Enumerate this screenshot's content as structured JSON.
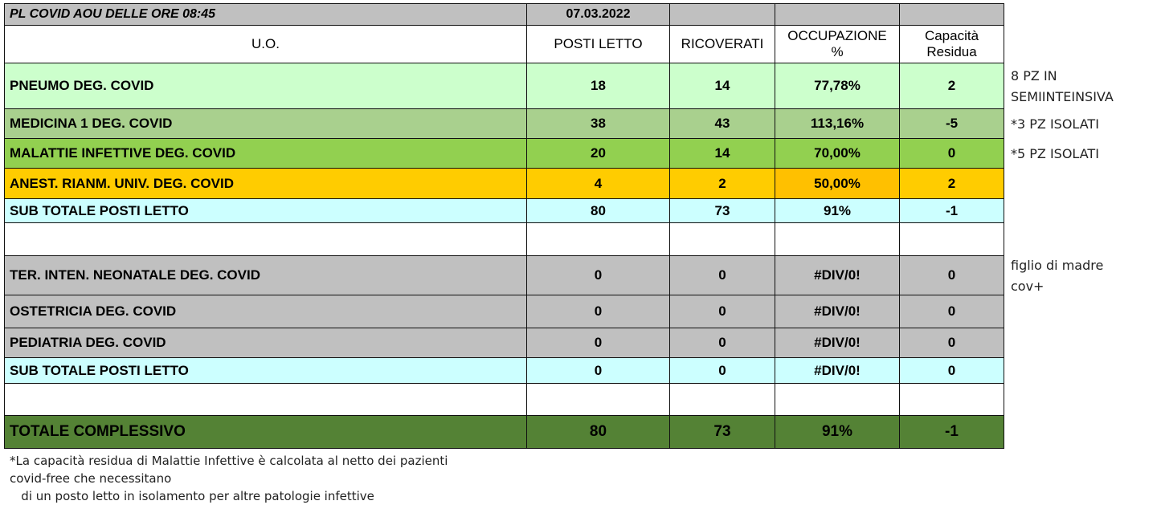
{
  "header": {
    "title": "PL COVID AOU DELLE ORE 08:45",
    "date": "07.03.2022"
  },
  "columns": [
    "U.O.",
    "POSTI LETTO",
    "RICOVERATI",
    "OCCUPAZIONE %",
    "Capacità Residua"
  ],
  "rows": [
    {
      "name": "PNEUMO  DEG. COVID",
      "posti": "18",
      "ricoverati": "14",
      "occupazione": "77,78%",
      "capacita": "2",
      "bg": "#ccffcc",
      "occ_bg": "#ccffcc",
      "note": "8 PZ IN SEMIINTEINSIVA"
    },
    {
      "name": "MEDICINA 1 DEG. COVID",
      "posti": "38",
      "ricoverati": "43",
      "occupazione": "113,16%",
      "capacita": "-5",
      "bg": "#a9d08e",
      "occ_bg": "#a9d08e",
      "note": "*3 PZ  ISOLATI"
    },
    {
      "name": "MALATTIE INFETTIVE  DEG. COVID",
      "posti": "20",
      "ricoverati": "14",
      "occupazione": "70,00%",
      "capacita": "0",
      "bg": "#92d050",
      "occ_bg": "#92d050",
      "note": "*5  PZ  ISOLATI"
    },
    {
      "name": "ANEST. RIANM. UNIV. DEG. COVID",
      "posti": "4",
      "ricoverati": "2",
      "occupazione": "50,00%",
      "capacita": "2",
      "bg": "#ffcc00",
      "occ_bg": "#ffc000",
      "note": ""
    },
    {
      "name": "SUB TOTALE POSTI LETTO",
      "posti": "80",
      "ricoverati": "73",
      "occupazione": "91%",
      "capacita": "-1",
      "bg": "#ccffff",
      "occ_bg": "#ccffff",
      "note": ""
    },
    {
      "name": "TER. INTEN. NEONATALE DEG. COVID",
      "posti": "0",
      "ricoverati": "0",
      "occupazione": "#DIV/0!",
      "capacita": "0",
      "bg": "#c0c0c0",
      "occ_bg": "#c0c0c0",
      "note": "figlio  di madre cov+"
    },
    {
      "name": "OSTETRICIA DEG.  COVID",
      "posti": "0",
      "ricoverati": "0",
      "occupazione": "#DIV/0!",
      "capacita": "0",
      "bg": "#c0c0c0",
      "occ_bg": "#c0c0c0",
      "note": ""
    },
    {
      "name": "PEDIATRIA DEG.  COVID",
      "posti": "0",
      "ricoverati": "0",
      "occupazione": "#DIV/0!",
      "capacita": "0",
      "bg": "#c0c0c0",
      "occ_bg": "#c0c0c0",
      "note": ""
    },
    {
      "name": "SUB TOTALE POSTI LETTO",
      "posti": "0",
      "ricoverati": "0",
      "occupazione": "#DIV/0!",
      "capacita": "0",
      "bg": "#ccffff",
      "occ_bg": "#ccffff",
      "note": ""
    },
    {
      "name": "TOTALE  COMPLESSIVO",
      "posti": "80",
      "ricoverati": "73",
      "occupazione": "91%",
      "capacita": "-1",
      "bg": "#548235",
      "occ_bg": "#548235",
      "note": ""
    }
  ],
  "footnote": [
    "*La capacità residua di Malattie Infettive è calcolata al netto dei pazienti",
    "covid-free che necessitano",
    "   di un posto letto in isolamento per altre patologie infettive"
  ]
}
